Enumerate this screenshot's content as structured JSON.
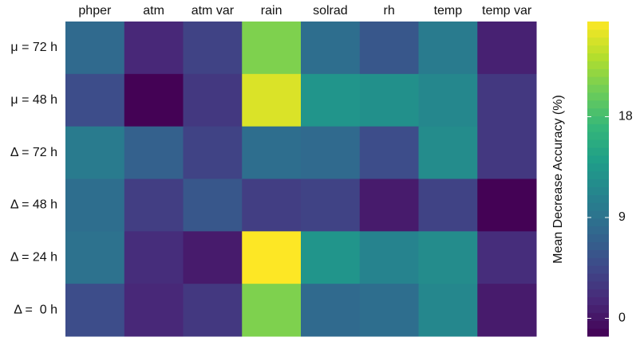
{
  "chart_data": {
    "type": "heatmap",
    "x_categories": [
      "phper",
      "atm",
      "atm var",
      "rain",
      "solrad",
      "rh",
      "temp",
      "temp var"
    ],
    "y_categories": [
      "μ = 72 h",
      "μ = 48 h",
      "Δ = 72 h",
      "Δ = 48 h",
      "Δ = 24 h",
      "Δ =  0 h"
    ],
    "values": [
      [
        8,
        1.5,
        4,
        21,
        8.5,
        6,
        10,
        1
      ],
      [
        5,
        -1.5,
        3,
        25,
        13,
        12.5,
        11.5,
        3
      ],
      [
        10,
        7,
        4,
        8.5,
        8,
        5,
        12,
        3
      ],
      [
        8.5,
        3.5,
        6,
        3.5,
        4,
        0.5,
        4,
        -1.5
      ],
      [
        9,
        2,
        0.5,
        26.5,
        13,
        11,
        12,
        2
      ],
      [
        5,
        1.5,
        3,
        21,
        8,
        8.5,
        11.5,
        0.5
      ]
    ],
    "colormap": "viridis",
    "zlim": [
      -1.6,
      26.5
    ],
    "zticks": [
      0,
      9,
      18
    ],
    "colorbar_label": "Mean Decrease Accuracy (%)"
  }
}
